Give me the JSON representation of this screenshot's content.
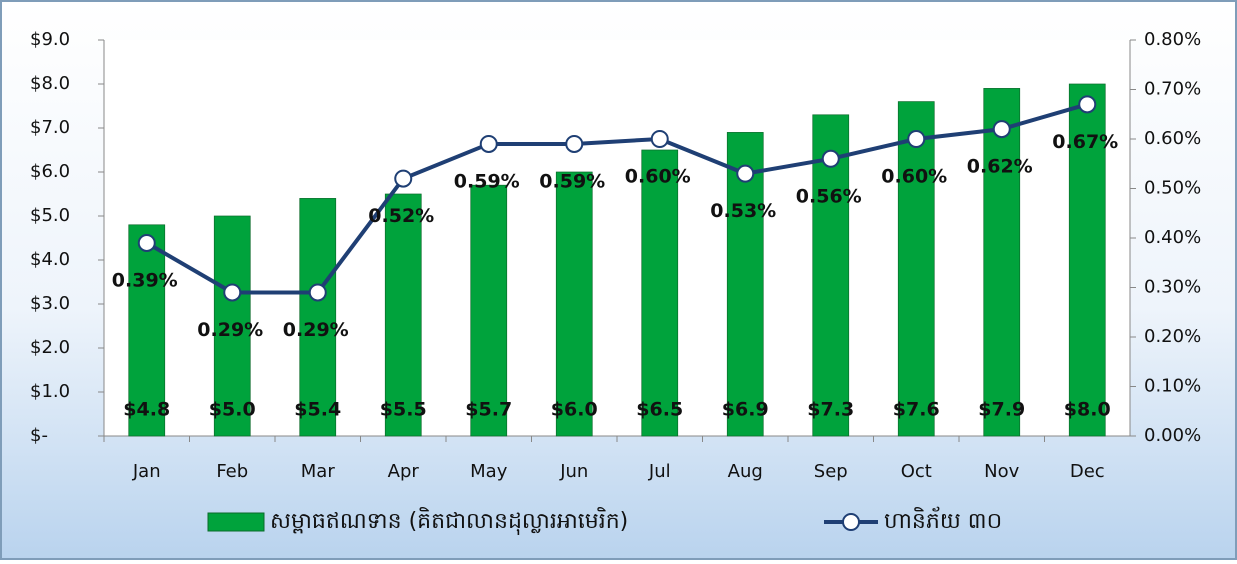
{
  "chart_data": {
    "type": "bar",
    "categories": [
      "Jan",
      "Feb",
      "Mar",
      "Apr",
      "May",
      "Jun",
      "Jul",
      "Aug",
      "Sep",
      "Oct",
      "Nov",
      "Dec"
    ],
    "series": [
      {
        "name": "សម្ពាធឥណទាន (គិតជាលានដុល្លារអាមេរិក)",
        "type": "bar",
        "color": "#00a33c",
        "values": [
          4.8,
          5.0,
          5.4,
          5.5,
          5.7,
          6.0,
          6.5,
          6.9,
          7.3,
          7.6,
          7.9,
          8.0
        ],
        "value_labels": [
          "$4.8",
          "$5.0",
          "$5.4",
          "$5.5",
          "$5.7",
          "$6.0",
          "$6.5",
          "$6.9",
          "$7.3",
          "$7.6",
          "$7.9",
          "$8.0"
        ]
      },
      {
        "name": "ហានិភ័យ ៣០",
        "type": "line",
        "axis": "y2",
        "color": "#1f3f74",
        "values": [
          0.39,
          0.29,
          0.29,
          0.52,
          0.59,
          0.59,
          0.6,
          0.53,
          0.56,
          0.6,
          0.62,
          0.67
        ],
        "value_labels": [
          "0.39%",
          "0.29%",
          "0.29%",
          "0.52%",
          "0.59%",
          "0.59%",
          "0.60%",
          "0.53%",
          "0.56%",
          "0.60%",
          "0.62%",
          "0.67%"
        ]
      }
    ],
    "ylim": [
      0,
      9
    ],
    "yticks": [
      {
        "value": 0,
        "label": "$-"
      },
      {
        "value": 1,
        "label": "$1.0"
      },
      {
        "value": 2,
        "label": "$2.0"
      },
      {
        "value": 3,
        "label": "$3.0"
      },
      {
        "value": 4,
        "label": "$4.0"
      },
      {
        "value": 5,
        "label": "$5.0"
      },
      {
        "value": 6,
        "label": "$6.0"
      },
      {
        "value": 7,
        "label": "$7.0"
      },
      {
        "value": 8,
        "label": "$8.0"
      },
      {
        "value": 9,
        "label": "$9.0"
      }
    ],
    "y2lim": [
      0,
      0.8
    ],
    "y2ticks": [
      {
        "value": 0,
        "label": "0.00%"
      },
      {
        "value": 0.1,
        "label": "0.10%"
      },
      {
        "value": 0.2,
        "label": "0.20%"
      },
      {
        "value": 0.3,
        "label": "0.30%"
      },
      {
        "value": 0.4,
        "label": "0.40%"
      },
      {
        "value": 0.5,
        "label": "0.50%"
      },
      {
        "value": 0.6,
        "label": "0.60%"
      },
      {
        "value": 0.7,
        "label": "0.70%"
      },
      {
        "value": 0.8,
        "label": "0.80%"
      }
    ],
    "legend": "bottom"
  }
}
